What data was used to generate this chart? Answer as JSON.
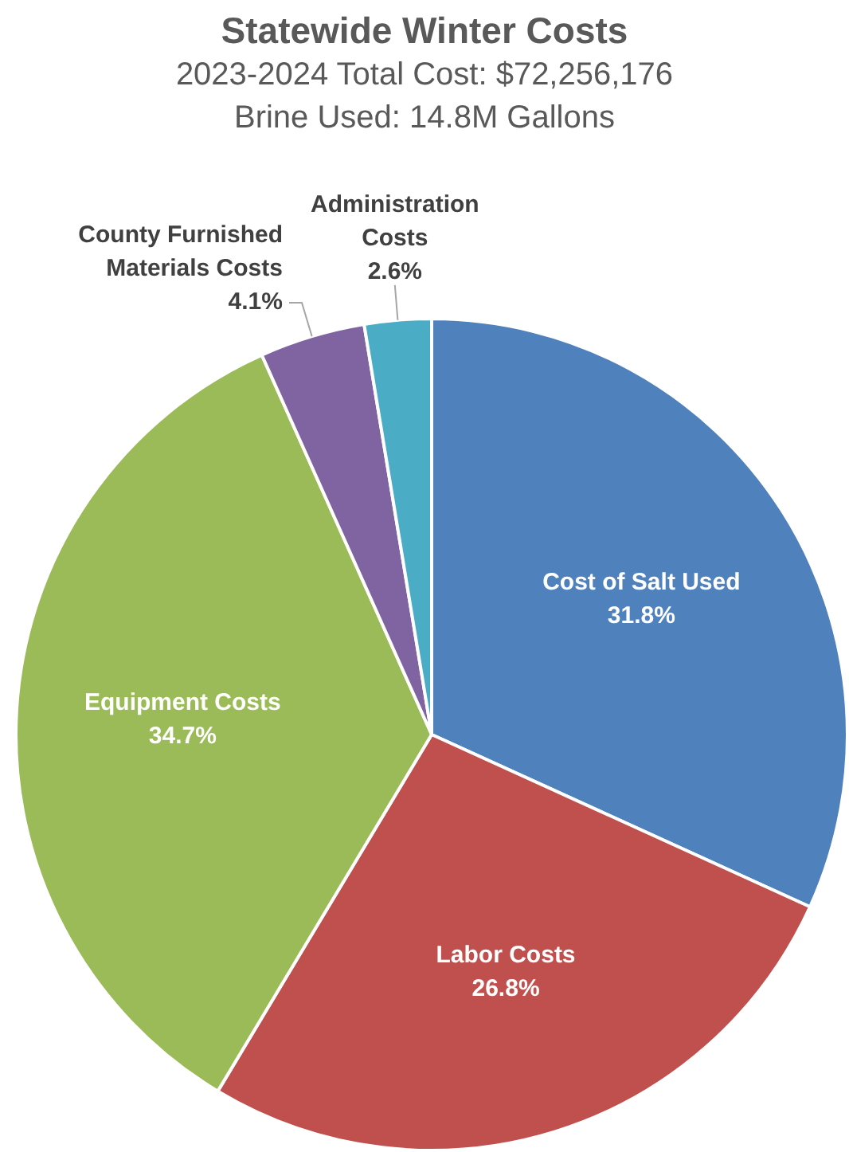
{
  "chart_data": {
    "type": "pie",
    "title": "Statewide Winter Costs",
    "subtitle": "2023-2024 Total Cost: $72,256,176\nBrine Used: 14.8M Gallons",
    "categories": [
      "Cost of Salt Used",
      "Labor Costs",
      "Equipment Costs",
      "County Furnished Materials Costs",
      "Administration Costs"
    ],
    "values": [
      31.8,
      26.8,
      34.7,
      4.1,
      2.6
    ],
    "colors": [
      "#4f81bd",
      "#c0504d",
      "#9bbb59",
      "#8064a2",
      "#4bacc6"
    ],
    "value_labels": [
      "31.8%",
      "26.8%",
      "34.7%",
      "4.1%",
      "2.6%"
    ],
    "legend": false
  }
}
